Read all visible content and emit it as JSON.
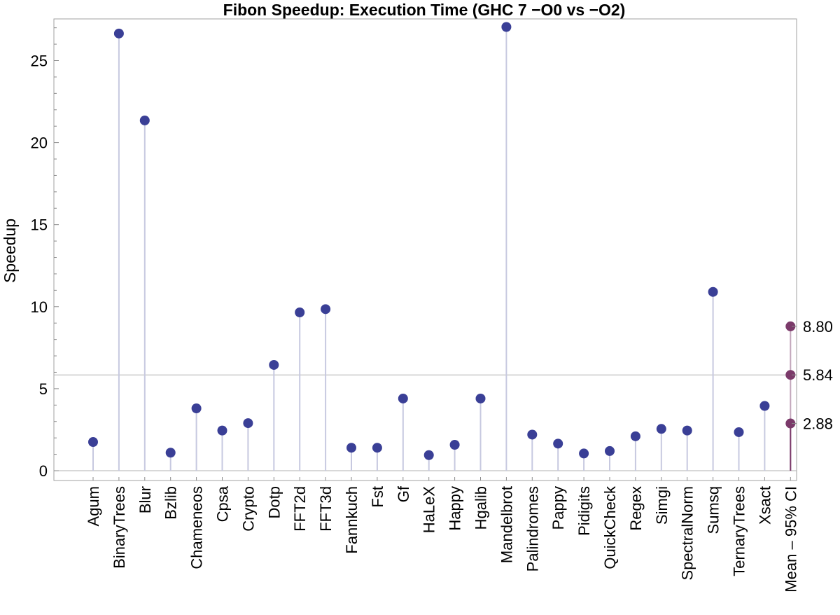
{
  "chart_data": {
    "type": "scatter",
    "title": "Fibon Speedup: Execution Time (GHC 7 −O0 vs −O2)",
    "xlabel": "",
    "ylabel": "Speedup",
    "ylim": [
      -0.6,
      27.6
    ],
    "yticks": [
      0,
      5,
      10,
      15,
      20,
      25
    ],
    "grid": false,
    "categories": [
      "Agum",
      "BinaryTrees",
      "Blur",
      "Bzlib",
      "Chameneos",
      "Cpsa",
      "Crypto",
      "Dotp",
      "FFT2d",
      "FFT3d",
      "Fannkuch",
      "Fst",
      "Gf",
      "HaLeX",
      "Happy",
      "Hgalib",
      "Mandelbrot",
      "Palindromes",
      "Pappy",
      "Pidigits",
      "QuickCheck",
      "Regex",
      "Simgi",
      "SpectralNorm",
      "Sumsq",
      "TernaryTrees",
      "Xsact",
      "Mean – 95% CI"
    ],
    "series": [
      {
        "values": [
          1.75,
          26.65,
          21.35,
          1.1,
          3.8,
          2.45,
          2.9,
          6.45,
          9.65,
          9.85,
          1.4,
          1.4,
          4.4,
          0.95,
          1.58,
          4.4,
          27.05,
          2.2,
          1.65,
          1.05,
          1.2,
          2.1,
          2.55,
          2.45,
          10.9,
          2.35,
          3.95
        ],
        "color": "#3a3f96"
      }
    ],
    "mean_ci": {
      "category": "Mean – 95% CI",
      "mean": 5.84,
      "upper": 8.8,
      "lower": 2.88,
      "labels": [
        "8.80",
        "5.84",
        "2.88"
      ],
      "color": "#7b3a6a"
    },
    "reference_line": 5.84
  }
}
